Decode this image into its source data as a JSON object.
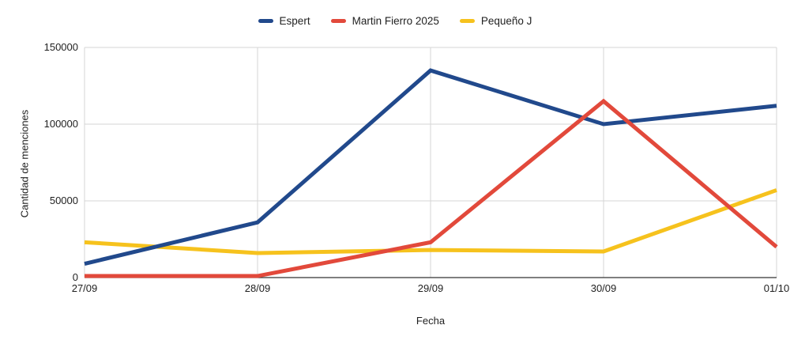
{
  "chart_data": {
    "type": "line",
    "categories": [
      "27/09",
      "28/09",
      "29/09",
      "30/09",
      "01/10"
    ],
    "series": [
      {
        "name": "Espert",
        "color": "#21498c",
        "values": [
          9000,
          36000,
          135000,
          100000,
          112000
        ]
      },
      {
        "name": "Martin Fierro 2025",
        "color": "#e2493b",
        "values": [
          1000,
          1000,
          23000,
          115000,
          20000
        ]
      },
      {
        "name": "Pequeño J",
        "color": "#f6c21d",
        "values": [
          23000,
          16000,
          18000,
          17000,
          57000
        ]
      }
    ],
    "xlabel": "Fecha",
    "ylabel": "Cantidad de menciones",
    "ylim": [
      0,
      150000
    ],
    "yticks": [
      0,
      50000,
      100000,
      150000
    ],
    "grid": true,
    "legend_position": "top"
  },
  "styles": {
    "grid_color": "#d6d6d6",
    "axis_color": "#333333",
    "background": "#ffffff",
    "line_width": 5
  }
}
